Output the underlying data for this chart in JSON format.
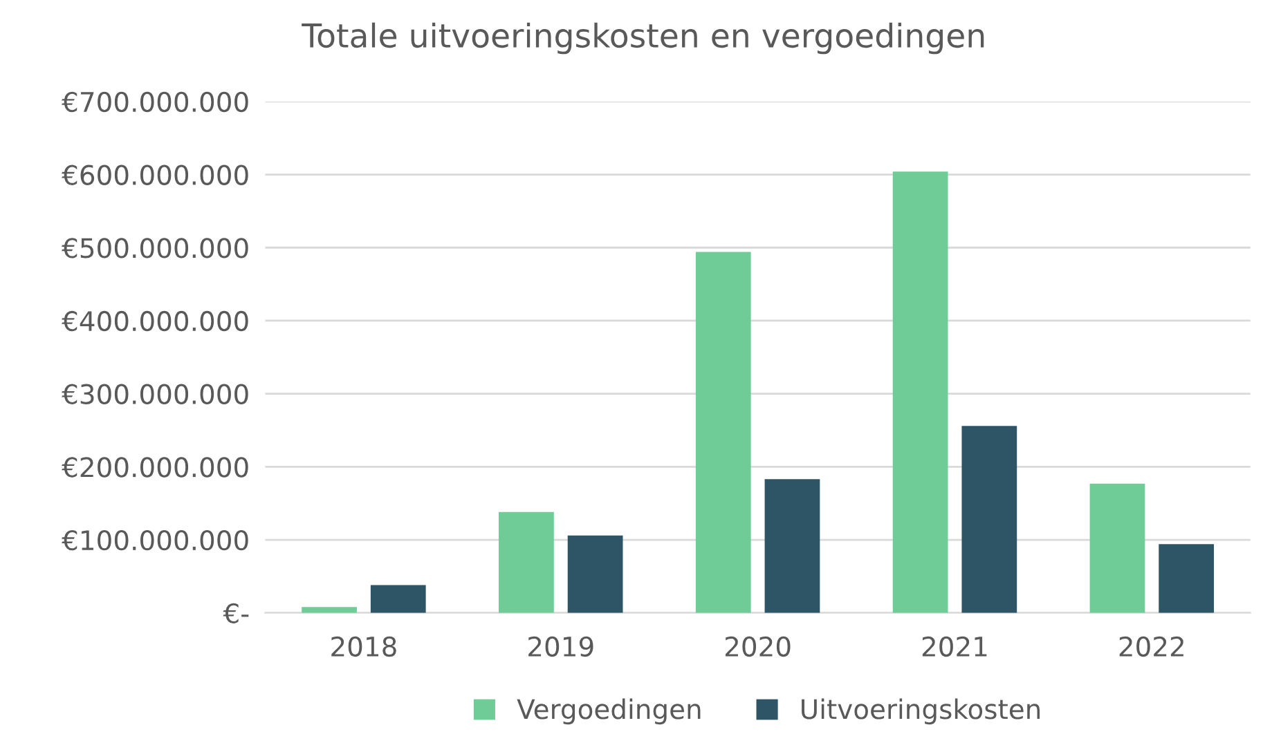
{
  "chart_data": {
    "type": "bar",
    "title": "Totale uitvoeringskosten en vergoedingen",
    "categories": [
      "2018",
      "2019",
      "2020",
      "2021",
      "2022"
    ],
    "series": [
      {
        "name": "Vergoedingen",
        "color": "#70cc97",
        "values": [
          8000000,
          138000000,
          494000000,
          604000000,
          177000000
        ]
      },
      {
        "name": "Uitvoeringskosten",
        "color": "#2e5566",
        "values": [
          38000000,
          106000000,
          183000000,
          256000000,
          94000000
        ]
      }
    ],
    "ylim": [
      0,
      700000000
    ],
    "yticks": [
      {
        "value": 0,
        "label": "€-"
      },
      {
        "value": 100000000,
        "label": "€100.000.000"
      },
      {
        "value": 200000000,
        "label": "€200.000.000"
      },
      {
        "value": 300000000,
        "label": "€300.000.000"
      },
      {
        "value": 400000000,
        "label": "€400.000.000"
      },
      {
        "value": 500000000,
        "label": "€500.000.000"
      },
      {
        "value": 600000000,
        "label": "€600.000.000"
      },
      {
        "value": 700000000,
        "label": "€700.000.000"
      }
    ],
    "grid": "y",
    "legend": "bottom"
  }
}
